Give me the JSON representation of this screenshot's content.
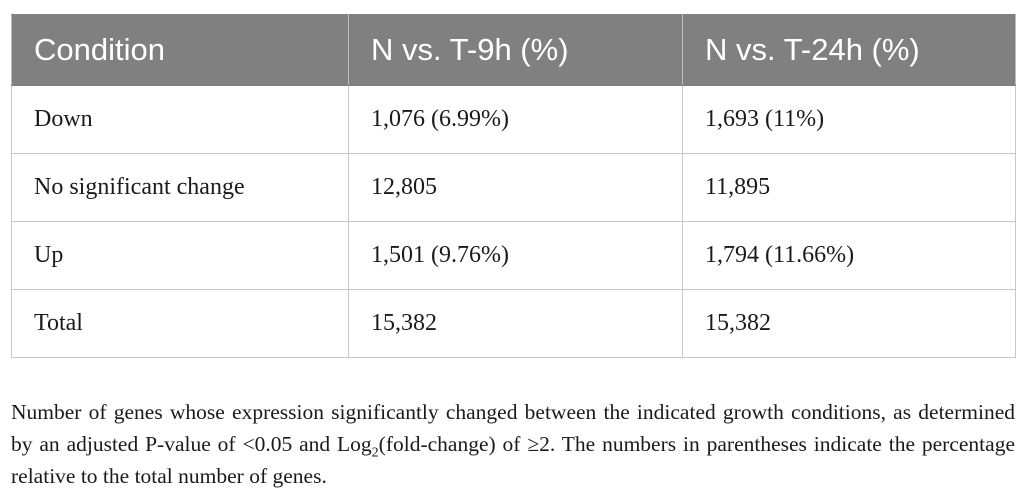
{
  "table": {
    "headers": [
      "Condition",
      "N vs. T-9h (%)",
      "N vs. T-24h (%)"
    ],
    "rows": [
      [
        "Down",
        "1,076 (6.99%)",
        "1,693 (11%)"
      ],
      [
        "No significant change",
        "12,805",
        "11,895"
      ],
      [
        "Up",
        "1,501 (9.76%)",
        "1,794 (11.66%)"
      ],
      [
        "Total",
        "15,382",
        "15,382"
      ]
    ]
  },
  "caption": {
    "part1": "Number of genes whose expression significantly changed between the indicated growth conditions, as determined by an adjusted P-value of <0.05 and Log",
    "sub": "2",
    "part2": "(fold-change) of ≥2. The numbers in parentheses indicate the percentage relative to the total number of genes."
  },
  "colors": {
    "header_bg": "#808080",
    "header_text": "#ffffff",
    "grid": "#c8c8c8"
  }
}
